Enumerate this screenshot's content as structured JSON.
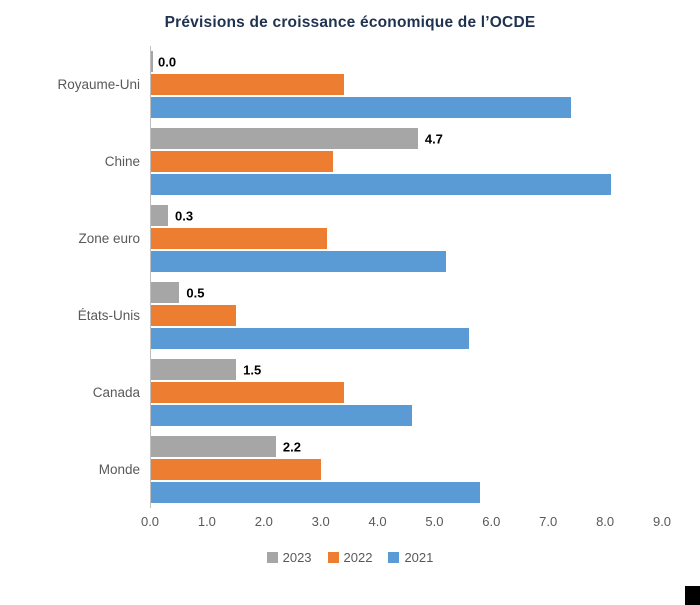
{
  "chart_data": {
    "type": "bar",
    "orientation": "horizontal",
    "title": "Prévisions de croissance économique de l’OCDE",
    "categories": [
      "Royaume-Uni",
      "Chine",
      "Zone euro",
      "États-Unis",
      "Canada",
      "Monde"
    ],
    "series": [
      {
        "name": "2023",
        "color": "#a6a6a6",
        "values": [
          0.0,
          4.7,
          0.3,
          0.5,
          1.5,
          2.2
        ],
        "data_labels": true
      },
      {
        "name": "2022",
        "color": "#ed7d31",
        "values": [
          3.4,
          3.2,
          3.1,
          1.5,
          3.4,
          3.0
        ],
        "data_labels": false
      },
      {
        "name": "2021",
        "color": "#5b9bd5",
        "values": [
          7.4,
          8.1,
          5.2,
          5.6,
          4.6,
          5.8
        ],
        "data_labels": false
      }
    ],
    "xlim": [
      0,
      9
    ],
    "x_tick_labels": [
      "0.0",
      "1.0",
      "2.0",
      "3.0",
      "4.0",
      "5.0",
      "6.0",
      "7.0",
      "8.0",
      "9.0"
    ],
    "legend_position": "bottom",
    "grid": false
  },
  "colors": {
    "series_2023": "#a6a6a6",
    "series_2022": "#ed7d31",
    "series_2021": "#5b9bd5",
    "title_text": "#1f3250",
    "axis_text": "#595959",
    "axis_line": "#bfbfbf",
    "data_label_text": "#000000"
  }
}
